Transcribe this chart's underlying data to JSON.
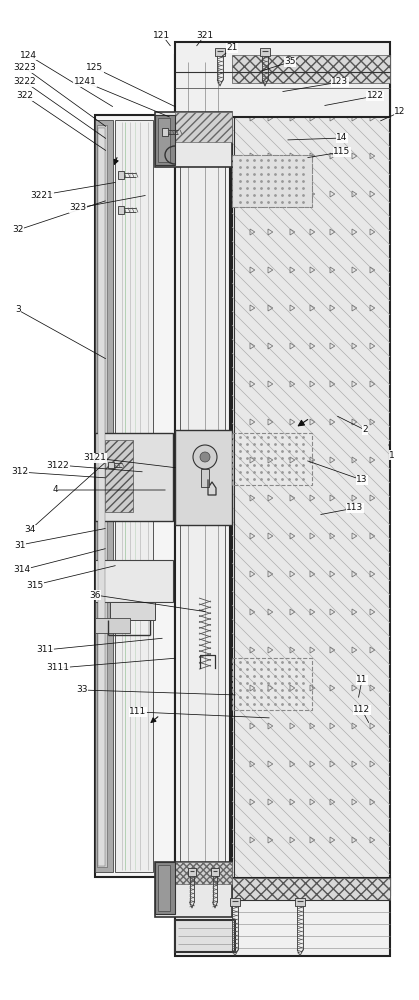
{
  "bg": "#ffffff",
  "lc": "#111111",
  "gc": "#888888",
  "figsize": [
    4.19,
    10.0
  ],
  "dpi": 100,
  "labels_top": [
    [
      "3223",
      25,
      68,
      108,
      128
    ],
    [
      "3222",
      25,
      82,
      108,
      140
    ],
    [
      "322",
      25,
      96,
      108,
      152
    ],
    [
      "32",
      18,
      230,
      108,
      200
    ],
    [
      "3221",
      42,
      195,
      118,
      182
    ],
    [
      "323",
      78,
      208,
      148,
      195
    ],
    [
      "3",
      18,
      310,
      108,
      360
    ],
    [
      "34",
      30,
      530,
      108,
      460
    ],
    [
      "4",
      55,
      490,
      168,
      490
    ],
    [
      "312",
      20,
      472,
      108,
      478
    ],
    [
      "3122",
      58,
      465,
      145,
      472
    ],
    [
      "3121",
      95,
      458,
      178,
      468
    ],
    [
      "314",
      22,
      570,
      108,
      548
    ],
    [
      "315",
      35,
      585,
      118,
      565
    ],
    [
      "31",
      20,
      545,
      108,
      528
    ],
    [
      "36",
      95,
      595,
      208,
      612
    ],
    [
      "311",
      45,
      650,
      165,
      638
    ],
    [
      "3111",
      58,
      668,
      178,
      658
    ],
    [
      "33",
      82,
      690,
      238,
      695
    ],
    [
      "111",
      138,
      712,
      272,
      718
    ],
    [
      "112",
      362,
      710,
      370,
      725
    ],
    [
      "11",
      362,
      680,
      358,
      700
    ],
    [
      "113",
      355,
      508,
      318,
      515
    ],
    [
      "1",
      392,
      455,
      388,
      442
    ],
    [
      "13",
      362,
      480,
      305,
      460
    ],
    [
      "2",
      365,
      430,
      335,
      415
    ],
    [
      "115",
      342,
      152,
      305,
      158
    ],
    [
      "14",
      342,
      138,
      285,
      140
    ],
    [
      "12",
      400,
      112,
      378,
      122
    ],
    [
      "122",
      375,
      96,
      322,
      106
    ],
    [
      "123",
      340,
      82,
      280,
      92
    ],
    [
      "35",
      290,
      62,
      258,
      72
    ],
    [
      "21",
      232,
      48,
      220,
      58
    ],
    [
      "321",
      205,
      35,
      195,
      48
    ],
    [
      "121",
      162,
      35,
      172,
      48
    ],
    [
      "125",
      95,
      68,
      178,
      108
    ],
    [
      "1241",
      85,
      82,
      172,
      118
    ],
    [
      "124",
      28,
      55,
      115,
      108
    ]
  ]
}
